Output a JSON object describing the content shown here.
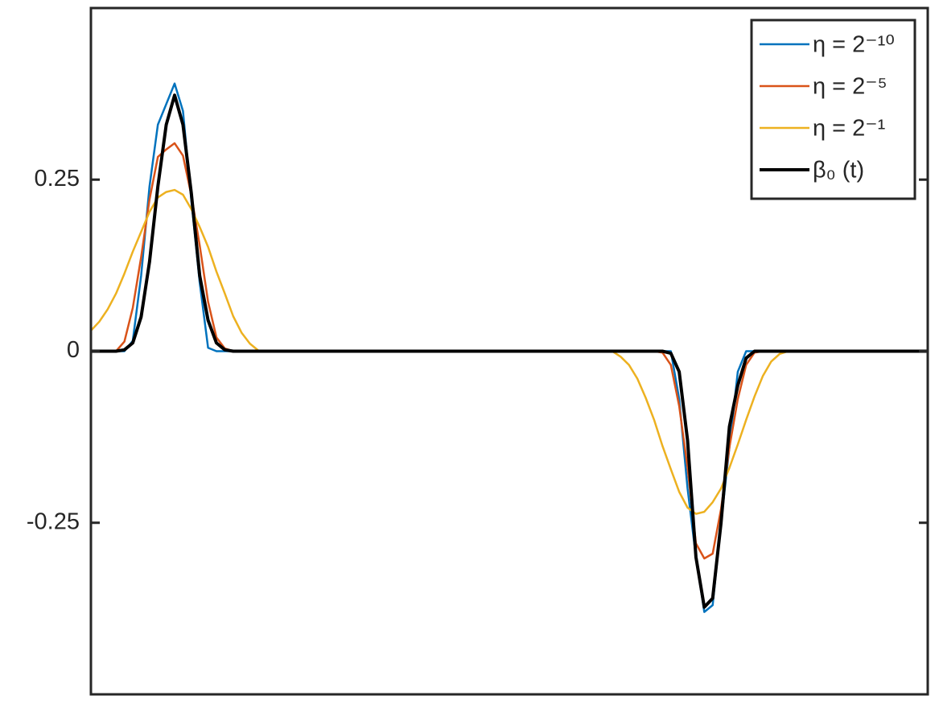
{
  "chart_data": {
    "type": "line",
    "x": [
      0,
      1,
      2,
      3,
      4,
      5,
      6,
      7,
      8,
      9,
      10,
      11,
      12,
      13,
      14,
      15,
      16,
      17,
      18,
      19,
      20,
      21,
      62.3,
      63.3,
      64.3,
      65.3,
      66.3,
      67.3,
      68.3,
      69.3,
      70.3,
      71.3,
      72.3,
      73.3,
      74.3,
      75.3,
      76.3,
      77.3,
      78.3,
      79.3,
      80.3,
      81.3,
      82.3,
      83.3,
      84.3,
      100
    ],
    "xlim": [
      0,
      100
    ],
    "ylim": [
      -0.5,
      0.5
    ],
    "yticks": [
      -0.25,
      0,
      0.25
    ],
    "legend": "upper right",
    "series": [
      {
        "name": "η = 2⁻¹⁰",
        "color": "#0072bd",
        "width": 2.5,
        "values": [
          0,
          0,
          0,
          0,
          0,
          0.015,
          0.11,
          0.24,
          0.33,
          0.36,
          0.39,
          0.35,
          0.22,
          0.1,
          0.005,
          0,
          0,
          0,
          0,
          0,
          0,
          0,
          0,
          0,
          0,
          0,
          0,
          0,
          0,
          0,
          -0.07,
          -0.2,
          -0.3,
          -0.38,
          -0.37,
          -0.25,
          -0.14,
          -0.03,
          0,
          0,
          0,
          0,
          0,
          0,
          0,
          0
        ]
      },
      {
        "name": "η = 2⁻⁵",
        "color": "#d95319",
        "width": 2.5,
        "values": [
          0,
          0,
          0,
          0,
          0.014,
          0.063,
          0.137,
          0.221,
          0.283,
          0.294,
          0.303,
          0.285,
          0.227,
          0.154,
          0.072,
          0.02,
          0.004,
          0,
          0,
          0,
          0,
          0,
          0,
          0,
          0,
          0,
          0,
          0,
          -0.002,
          -0.02,
          -0.08,
          -0.17,
          -0.28,
          -0.302,
          -0.295,
          -0.23,
          -0.14,
          -0.07,
          -0.02,
          -0.002,
          0,
          0,
          0,
          0,
          0,
          0
        ]
      },
      {
        "name": "η = 2⁻¹",
        "color": "#edb120",
        "width": 2.5,
        "values": [
          0.03,
          0.043,
          0.061,
          0.084,
          0.113,
          0.145,
          0.174,
          0.203,
          0.224,
          0.232,
          0.235,
          0.228,
          0.207,
          0.181,
          0.152,
          0.116,
          0.084,
          0.051,
          0.027,
          0.011,
          0.001,
          0,
          0,
          -0.008,
          -0.02,
          -0.04,
          -0.068,
          -0.1,
          -0.138,
          -0.172,
          -0.205,
          -0.228,
          -0.237,
          -0.234,
          -0.22,
          -0.2,
          -0.17,
          -0.136,
          -0.1,
          -0.066,
          -0.036,
          -0.015,
          -0.004,
          0,
          0,
          0
        ]
      },
      {
        "name": "β₀ (t)",
        "color": "#000000",
        "width": 4,
        "values": [
          0,
          0,
          0,
          0,
          0.002,
          0.012,
          0.05,
          0.13,
          0.24,
          0.33,
          0.373,
          0.33,
          0.23,
          0.11,
          0.045,
          0.012,
          0.002,
          0,
          0,
          0,
          0,
          0,
          0,
          0,
          0,
          0,
          0,
          0,
          0,
          -0.003,
          -0.03,
          -0.13,
          -0.3,
          -0.373,
          -0.36,
          -0.25,
          -0.11,
          -0.05,
          -0.01,
          0,
          0,
          0,
          0,
          0,
          0,
          0
        ]
      }
    ]
  }
}
